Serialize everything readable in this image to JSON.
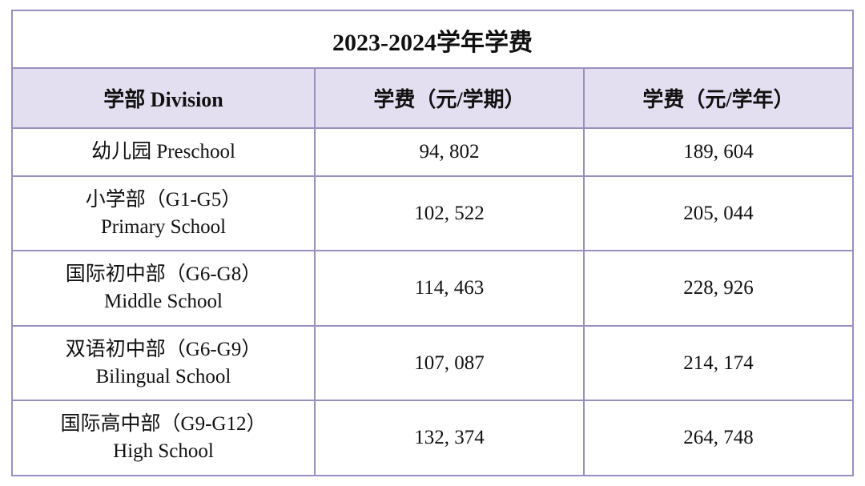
{
  "table": {
    "title": "2023-2024学年学费",
    "columns": {
      "division": "学部  Division",
      "per_semester": "学费（元/学期）",
      "per_year": "学费（元/学年）"
    },
    "rows": [
      {
        "division_cn": "幼儿园 Preschool",
        "division_en": "",
        "per_semester": "94, 802",
        "per_year": "189, 604"
      },
      {
        "division_cn": "小学部（G1-G5）",
        "division_en": "Primary School",
        "per_semester": "102, 522",
        "per_year": "205, 044"
      },
      {
        "division_cn": "国际初中部（G6-G8）",
        "division_en": "Middle School",
        "per_semester": "114, 463",
        "per_year": "228, 926"
      },
      {
        "division_cn": "双语初中部（G6-G9）",
        "division_en": "Bilingual School",
        "per_semester": "107, 087",
        "per_year": "214, 174"
      },
      {
        "division_cn": "国际高中部（G9-G12）",
        "division_en": "High School",
        "per_semester": "132, 374",
        "per_year": "264, 748"
      }
    ],
    "style": {
      "border_color": "#9a8fbf",
      "header_bg": "#e4dff0",
      "title_bg": "#ffffff",
      "text_color": "#111111",
      "title_fontsize": 30,
      "header_fontsize": 26,
      "cell_fontsize": 25,
      "font_family": "SimSun / Songti serif",
      "col_widths_pct": [
        36,
        32,
        32
      ]
    }
  }
}
